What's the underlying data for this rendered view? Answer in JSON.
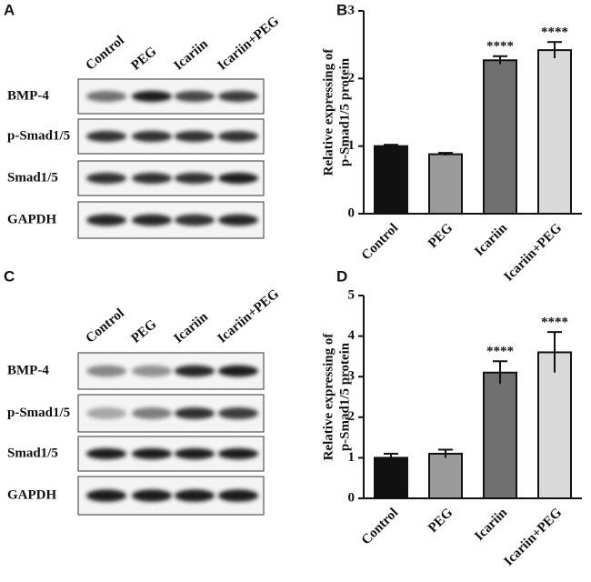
{
  "blots": [
    {
      "panel": "A",
      "columns": [
        "Control",
        "PEG",
        "Icariin",
        "Icariin+PEG"
      ],
      "rows": [
        "BMP-4",
        "p-Smad1/5",
        "Smad1/5",
        "GAPDH"
      ]
    },
    {
      "panel": "C",
      "columns": [
        "Control",
        "PEG",
        "Icariin",
        "Icariin+PEG"
      ],
      "rows": [
        "BMP-4",
        "p-Smad1/5",
        "Smad1/5",
        "GAPDH"
      ]
    }
  ],
  "chart_data": [
    {
      "type": "bar",
      "panel": "B",
      "ylabel": [
        "Relative expressing of",
        "p-Smad1/5 protein"
      ],
      "categories": [
        "Control",
        "PEG",
        "Icariin",
        "Icariin+PEG"
      ],
      "values": [
        1.0,
        0.88,
        2.27,
        2.42
      ],
      "errors": [
        0.02,
        0.02,
        0.06,
        0.12
      ],
      "value_annotations": [
        null,
        null,
        "****",
        "****"
      ],
      "colors": [
        "#111111",
        "#9a9a9a",
        "#707070",
        "#d9d9d9"
      ],
      "ylim": [
        0,
        3
      ],
      "yticks": [
        0,
        1,
        2,
        3
      ]
    },
    {
      "type": "bar",
      "panel": "D",
      "ylabel": [
        "Relative expressing of",
        "p-Smad1/5 protein"
      ],
      "categories": [
        "Control",
        "PEG",
        "Icariin",
        "Icariin+PEG"
      ],
      "values": [
        1.0,
        1.1,
        3.1,
        3.6
      ],
      "errors": [
        0.1,
        0.1,
        0.28,
        0.5
      ],
      "value_annotations": [
        null,
        null,
        "****",
        "****"
      ],
      "colors": [
        "#111111",
        "#9a9a9a",
        "#707070",
        "#d9d9d9"
      ],
      "ylim": [
        0,
        5
      ],
      "yticks": [
        0,
        1,
        2,
        3,
        4,
        5
      ]
    }
  ]
}
